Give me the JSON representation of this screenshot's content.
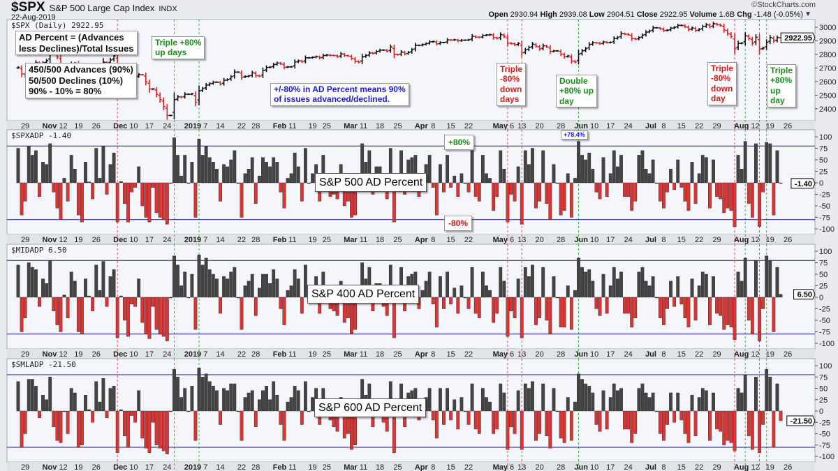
{
  "header": {
    "symbol": "$SPX",
    "name": "S&P 500 Large Cap Index",
    "exchange": "INDX",
    "date": "22-Aug-2019",
    "brand": "©StockCharts.com",
    "open_label": "Open",
    "open": "2930.94",
    "high_label": "High",
    "high": "2939.08",
    "low_label": "Low",
    "low": "2904.51",
    "close_label": "Close",
    "close": "2922.95",
    "volume_label": "Volume",
    "volume": "1.6B",
    "chg_label": "Chg",
    "chg": "-1.48 (-0.05%)"
  },
  "annotations": {
    "formula": "AD Percent = (Advances\nless Declines)/Total Issues",
    "example": "450/500 Advances (90%)\n50/500 Declines (10%)\n90% - 10% = 80%",
    "triple_up_dec": "Triple +80%\nup days",
    "meaning": "+/-80% in AD Percent means 90%\nof issues advanced/declined.",
    "triple_down_may": "Triple\n-80%\ndown\ndays",
    "double_up_jun": "Double\n+80% up\nday",
    "triple_down_aug": "Triple\n-80%\ndown\nday",
    "triple_up_aug": "Triple\n+80%\nup\nday",
    "plus80": "+80%",
    "minus80": "-80%",
    "jun_value": "+78.4%",
    "spx_title": "S&P 500 AD Percent",
    "mid_title": "S&P 400 AD Percent",
    "sml_title": "S&P 600 AD Percent"
  },
  "chart_data": {
    "type": "bar",
    "date_range": [
      "2018-10-25",
      "2019-08-22"
    ],
    "x_ticks": [
      [
        "29",
        "2018-10-29",
        false
      ],
      [
        "Nov",
        "2018-11-05",
        true
      ],
      [
        "12",
        "2018-11-12",
        false
      ],
      [
        "19",
        "2018-11-19",
        false
      ],
      [
        "26",
        "2018-11-26",
        false
      ],
      [
        "Dec",
        "2018-12-03",
        true
      ],
      [
        "10",
        "2018-12-10",
        false
      ],
      [
        "17",
        "2018-12-17",
        false
      ],
      [
        "24",
        "2018-12-24",
        false
      ],
      [
        "2019",
        "2018-12-31",
        true
      ],
      [
        "7",
        "2019-01-07",
        false
      ],
      [
        "14",
        "2019-01-14",
        false
      ],
      [
        "22",
        "2019-01-22",
        false
      ],
      [
        "28",
        "2019-01-28",
        false
      ],
      [
        "Feb",
        "2019-02-04",
        true
      ],
      [
        "11",
        "2019-02-11",
        false
      ],
      [
        "19",
        "2019-02-19",
        false
      ],
      [
        "25",
        "2019-02-25",
        false
      ],
      [
        "Mar",
        "2019-03-04",
        true
      ],
      [
        "11",
        "2019-03-11",
        false
      ],
      [
        "18",
        "2019-03-18",
        false
      ],
      [
        "25",
        "2019-03-25",
        false
      ],
      [
        "Apr",
        "2019-04-01",
        true
      ],
      [
        "8",
        "2019-04-08",
        false
      ],
      [
        "15",
        "2019-04-15",
        false
      ],
      [
        "22",
        "2019-04-22",
        false
      ],
      [
        "May",
        "2019-05-01",
        true
      ],
      [
        "6",
        "2019-05-06",
        false
      ],
      [
        "13",
        "2019-05-13",
        false
      ],
      [
        "20",
        "2019-05-20",
        false
      ],
      [
        "28",
        "2019-05-28",
        false
      ],
      [
        "Jun",
        "2019-06-03",
        true
      ],
      [
        "10",
        "2019-06-10",
        false
      ],
      [
        "17",
        "2019-06-17",
        false
      ],
      [
        "24",
        "2019-06-24",
        false
      ],
      [
        "Jul",
        "2019-07-01",
        true
      ],
      [
        "8",
        "2019-07-08",
        false
      ],
      [
        "15",
        "2019-07-15",
        false
      ],
      [
        "22",
        "2019-07-22",
        false
      ],
      [
        "29",
        "2019-07-29",
        false
      ],
      [
        "Aug",
        "2019-08-05",
        true
      ],
      [
        "12",
        "2019-08-12",
        false
      ],
      [
        "19",
        "2019-08-19",
        false
      ],
      [
        "26",
        "2019-08-26",
        false
      ]
    ],
    "markers": [
      [
        "2018-12-04",
        "#e05050"
      ],
      [
        "2018-12-26",
        "#40b040"
      ],
      [
        "2019-01-04",
        "#40b040"
      ],
      [
        "2019-05-07",
        "#e05050"
      ],
      [
        "2019-05-13",
        "#e05050"
      ],
      [
        "2019-06-04",
        "#40b040"
      ],
      [
        "2019-08-05",
        "#e05050"
      ],
      [
        "2019-08-08",
        "#40b040"
      ],
      [
        "2019-08-14",
        "#e05050"
      ],
      [
        "2019-08-16",
        "#40b040"
      ]
    ],
    "colors": {
      "up": "#111111",
      "down": "#dd2222",
      "up_bar": "#444444",
      "down_bar": "#dd3333",
      "ref_line": "#1a1a80"
    },
    "price": {
      "label": "$SPX (Daily) 2922.95",
      "last": "2922.95",
      "ylim": [
        2312,
        3057
      ],
      "y_ticks": [
        "3000",
        "2900",
        "2800",
        "2700",
        "2600",
        "2500",
        "2400"
      ],
      "close": [
        2705,
        2658,
        2641,
        2682,
        2711,
        2740,
        2723,
        2738,
        2755,
        2814,
        2806,
        2781,
        2726,
        2722,
        2702,
        2730,
        2736,
        2690,
        2641,
        2649,
        2649,
        2632,
        2673,
        2682,
        2743,
        2737,
        2760,
        2790,
        2700,
        2700,
        2695,
        2633,
        2637,
        2636,
        2651,
        2650,
        2599,
        2545,
        2546,
        2506,
        2467,
        2416,
        2351,
        2351,
        2467,
        2488,
        2485,
        2507,
        2507,
        2510,
        2448,
        2532,
        2549,
        2574,
        2585,
        2596,
        2596,
        2582,
        2610,
        2616,
        2635,
        2670,
        2670,
        2633,
        2638,
        2642,
        2665,
        2644,
        2640,
        2681,
        2704,
        2707,
        2725,
        2737,
        2731,
        2706,
        2708,
        2709,
        2744,
        2753,
        2746,
        2775,
        2775,
        2779,
        2784,
        2774,
        2792,
        2796,
        2793,
        2792,
        2784,
        2804,
        2792,
        2789,
        2771,
        2749,
        2743,
        2783,
        2792,
        2811,
        2808,
        2822,
        2832,
        2832,
        2824,
        2855,
        2800,
        2798,
        2818,
        2805,
        2815,
        2834,
        2867,
        2867,
        2873,
        2880,
        2893,
        2895,
        2878,
        2888,
        2888,
        2907,
        2906,
        2908,
        2900,
        2905,
        2905,
        2908,
        2934,
        2927,
        2926,
        2940,
        2943,
        2946,
        2924,
        2918,
        2946,
        2932,
        2884,
        2880,
        2871,
        2881,
        2812,
        2834,
        2851,
        2876,
        2860,
        2840,
        2864,
        2856,
        2822,
        2826,
        2826,
        2803,
        2783,
        2789,
        2752,
        2744,
        2803,
        2826,
        2843,
        2873,
        2886,
        2885,
        2879,
        2891,
        2887,
        2889,
        2917,
        2926,
        2954,
        2950,
        2945,
        2917,
        2913,
        2924,
        2942,
        2964,
        2973,
        2996,
        2996,
        2990,
        2976,
        2979,
        2993,
        3000,
        3014,
        3014,
        3004,
        2984,
        2995,
        2977,
        2985,
        3005,
        3019,
        3004,
        3026,
        3020,
        3013,
        2980,
        2954,
        2932,
        2844,
        2881,
        2884,
        2938,
        2918,
        2883,
        2926,
        2840,
        2848,
        2889,
        2924,
        2900,
        2924,
        2922.95
      ]
    },
    "ad_y_ticks": [
      "100",
      "75",
      "50",
      "25",
      "0",
      "-25",
      "-50",
      "-75",
      "-100"
    ],
    "ad_ylim": [
      -100,
      100
    ],
    "ref_levels": [
      80,
      -80
    ],
    "panels": [
      {
        "label": "$SPXADP -1.40",
        "last": "-1.40",
        "values": [
          75,
          -70,
          -40,
          80,
          60,
          70,
          -30,
          45,
          40,
          85,
          -20,
          -55,
          -80,
          10,
          -40,
          60,
          30,
          -70,
          -85,
          45,
          2,
          -35,
          75,
          10,
          80,
          -25,
          40,
          65,
          -85,
          3,
          -45,
          -85,
          -20,
          -10,
          35,
          -50,
          -75,
          -85,
          -10,
          -65,
          -75,
          -80,
          -90,
          0,
          98,
          60,
          15,
          60,
          0,
          45,
          -75,
          95,
          60,
          80,
          55,
          45,
          30,
          -40,
          40,
          35,
          50,
          70,
          0,
          -75,
          20,
          30,
          55,
          -45,
          15,
          55,
          45,
          35,
          55,
          45,
          -20,
          -55,
          10,
          20,
          65,
          35,
          -40,
          75,
          0,
          20,
          40,
          -40,
          60,
          5,
          -30,
          -25,
          -35,
          40,
          -50,
          -40,
          -75,
          -70,
          10,
          85,
          45,
          70,
          -25,
          35,
          35,
          -15,
          -35,
          75,
          -85,
          10,
          70,
          -25,
          50,
          55,
          60,
          -30,
          10,
          40,
          60,
          -10,
          -70,
          40,
          -20,
          60,
          -10,
          15,
          -30,
          20,
          0,
          -20,
          70,
          -30,
          -40,
          60,
          20,
          10,
          -60,
          -30,
          70,
          30,
          -85,
          -25,
          -40,
          35,
          -90,
          70,
          40,
          75,
          -55,
          -40,
          70,
          -45,
          -80,
          40,
          0,
          -70,
          -60,
          20,
          -75,
          10,
          90,
          60,
          50,
          65,
          30,
          -20,
          -35,
          55,
          -30,
          20,
          70,
          35,
          60,
          -30,
          -30,
          -60,
          -40,
          60,
          70,
          30,
          20,
          50,
          0,
          -40,
          -55,
          -20,
          30,
          -15,
          50,
          -10,
          -40,
          -60,
          45,
          -45,
          20,
          60,
          55,
          -55,
          50,
          -30,
          -35,
          -65,
          -55,
          -60,
          -95,
          60,
          30,
          90,
          -45,
          -75,
          85,
          -95,
          -20,
          88,
          85,
          -70,
          70,
          -1.4
        ]
      },
      {
        "label": "$MIDADP 6.50",
        "last": "6.50",
        "values": [
          70,
          -75,
          -45,
          75,
          65,
          60,
          -20,
          40,
          30,
          80,
          -30,
          -60,
          -75,
          5,
          -45,
          55,
          35,
          -75,
          -80,
          40,
          3,
          -30,
          70,
          15,
          78,
          -20,
          45,
          60,
          -88,
          3,
          -50,
          -85,
          -15,
          -20,
          40,
          -55,
          -80,
          -90,
          -20,
          -70,
          -80,
          -85,
          -95,
          0,
          90,
          70,
          25,
          55,
          0,
          50,
          -70,
          92,
          70,
          85,
          60,
          50,
          40,
          -35,
          45,
          40,
          55,
          65,
          0,
          -70,
          25,
          35,
          50,
          -40,
          20,
          50,
          50,
          30,
          60,
          40,
          -25,
          -60,
          15,
          25,
          60,
          40,
          -35,
          70,
          0,
          25,
          45,
          -35,
          55,
          10,
          -25,
          -30,
          -40,
          35,
          -55,
          -45,
          -80,
          -70,
          15,
          75,
          40,
          65,
          -30,
          30,
          30,
          -20,
          -40,
          70,
          -88,
          15,
          65,
          -30,
          45,
          50,
          55,
          -25,
          15,
          35,
          55,
          -15,
          -65,
          45,
          -25,
          55,
          -15,
          20,
          -35,
          25,
          0,
          -25,
          65,
          -35,
          -45,
          55,
          25,
          15,
          -55,
          -35,
          65,
          35,
          -85,
          -30,
          -45,
          40,
          -88,
          65,
          45,
          70,
          -60,
          -45,
          65,
          -50,
          -80,
          45,
          0,
          -65,
          -65,
          25,
          -70,
          15,
          85,
          65,
          55,
          60,
          35,
          -25,
          -40,
          50,
          -35,
          25,
          65,
          40,
          55,
          -35,
          -35,
          -65,
          -45,
          55,
          65,
          35,
          25,
          45,
          0,
          -45,
          -60,
          -25,
          35,
          -20,
          45,
          -15,
          -45,
          -65,
          40,
          -50,
          25,
          55,
          50,
          -60,
          45,
          -35,
          -40,
          -70,
          -60,
          -65,
          -92,
          55,
          35,
          85,
          -50,
          -80,
          80,
          -95,
          -25,
          90,
          80,
          -75,
          65,
          6.5
        ]
      },
      {
        "label": "$SMLADP -21.50",
        "last": "-21.50",
        "values": [
          65,
          -80,
          -50,
          70,
          70,
          55,
          -15,
          35,
          25,
          75,
          -35,
          -65,
          -70,
          0,
          -50,
          50,
          40,
          -80,
          -75,
          35,
          3,
          -25,
          65,
          20,
          72,
          -15,
          50,
          55,
          -92,
          3,
          -55,
          -80,
          -10,
          -25,
          45,
          -60,
          -82,
          -92,
          -25,
          -75,
          -82,
          -88,
          -95,
          0,
          92,
          75,
          30,
          50,
          0,
          55,
          -65,
          95,
          75,
          82,
          65,
          55,
          45,
          -30,
          50,
          45,
          60,
          60,
          0,
          -65,
          30,
          40,
          45,
          -35,
          25,
          45,
          55,
          25,
          65,
          35,
          -30,
          -65,
          20,
          30,
          55,
          45,
          -30,
          65,
          0,
          30,
          50,
          -30,
          50,
          15,
          -20,
          -35,
          -45,
          30,
          -60,
          -50,
          -85,
          -75,
          20,
          70,
          35,
          60,
          -35,
          25,
          25,
          -25,
          -45,
          65,
          -92,
          20,
          60,
          -35,
          40,
          45,
          50,
          -20,
          20,
          30,
          50,
          -20,
          -60,
          50,
          -30,
          50,
          -20,
          25,
          -40,
          30,
          0,
          -30,
          60,
          -40,
          -50,
          50,
          30,
          20,
          -50,
          -40,
          60,
          40,
          -85,
          -35,
          -50,
          45,
          -85,
          60,
          50,
          65,
          -65,
          -50,
          60,
          -55,
          -82,
          50,
          0,
          -60,
          -70,
          30,
          -65,
          20,
          82,
          70,
          60,
          55,
          40,
          -30,
          -45,
          45,
          -40,
          30,
          60,
          45,
          50,
          -40,
          -40,
          -70,
          -50,
          50,
          60,
          40,
          30,
          40,
          0,
          -50,
          -65,
          -30,
          40,
          -25,
          40,
          -20,
          -50,
          -70,
          35,
          -55,
          30,
          50,
          45,
          -65,
          40,
          -40,
          -45,
          -75,
          -65,
          -70,
          -88,
          50,
          40,
          80,
          -55,
          -85,
          75,
          -92,
          -30,
          92,
          75,
          -80,
          60,
          -21.5
        ]
      }
    ]
  }
}
